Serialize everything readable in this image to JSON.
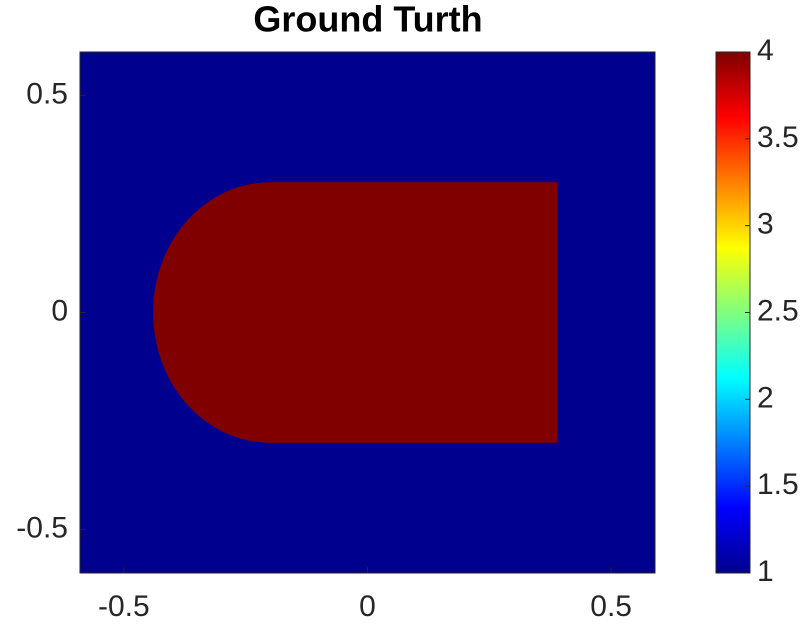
{
  "chart_data": {
    "type": "heatmap",
    "title": "Ground Turth",
    "xlim": [
      -0.59,
      0.59
    ],
    "ylim": [
      -0.6,
      0.6
    ],
    "xticks": [
      -0.5,
      0,
      0.5
    ],
    "yticks": [
      -0.5,
      0,
      0.5
    ],
    "field": {
      "background": 1,
      "inclusion": {
        "value": 4,
        "x_min": -0.2,
        "x_max": 0.39,
        "y_min": -0.3,
        "y_max": 0.3,
        "cap_radius_x": 0.24
      }
    },
    "colormap": "jet",
    "clim": [
      1,
      4
    ],
    "colorbar_ticks": [
      1,
      1.5,
      2,
      2.5,
      3,
      3.5,
      4
    ]
  }
}
